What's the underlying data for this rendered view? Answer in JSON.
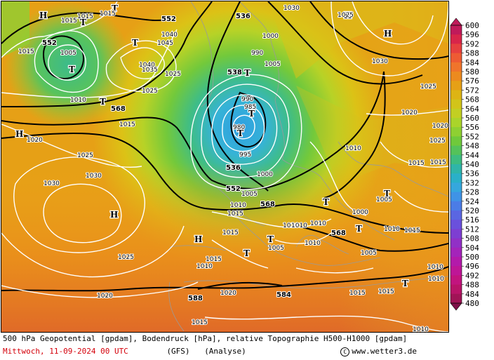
{
  "caption": {
    "line1": "500 hPa Geopotential [gpdam], Bodendruck [hPa], relative Topographie H500-H1000 [gpdam]",
    "date": "Mittwoch, 11-09-2024  00 UTC",
    "model": "(GFS)",
    "mode": "(Analyse)",
    "credit": "www.wetter3.de",
    "copyright_symbol": "C"
  },
  "legend": {
    "labels": [
      "600",
      "596",
      "592",
      "588",
      "584",
      "580",
      "576",
      "572",
      "568",
      "564",
      "560",
      "556",
      "552",
      "548",
      "544",
      "540",
      "536",
      "532",
      "528",
      "524",
      "520",
      "516",
      "512",
      "508",
      "504",
      "500",
      "496",
      "492",
      "488",
      "484",
      "480"
    ],
    "colors": [
      "#c01a5a",
      "#d8254a",
      "#e6403f",
      "#ee5b33",
      "#f0742b",
      "#ec8a1f",
      "#e6a016",
      "#ddb414",
      "#d2c419",
      "#c2cf22",
      "#aad42a",
      "#8ed032",
      "#6fc93b",
      "#54c25a",
      "#3dbc80",
      "#2fb5a8",
      "#2ab0c8",
      "#35a7dd",
      "#3f93e6",
      "#4b7ce6",
      "#5a66e2",
      "#6a50dc",
      "#7d3ed2",
      "#9130c6",
      "#a424ba",
      "#b31aaa",
      "#be1696",
      "#c2147e",
      "#b81468",
      "#a01456",
      "#7e1048"
    ]
  },
  "map": {
    "pressure_systems": [
      {
        "type": "H",
        "name": "high-azores"
      },
      {
        "type": "H",
        "name": "high-greenland-nw"
      },
      {
        "type": "H",
        "name": "high-russia-ne"
      },
      {
        "type": "H",
        "name": "high-russia-north"
      },
      {
        "type": "H",
        "name": "high-iberia"
      },
      {
        "type": "H",
        "name": "high-atlantic-west"
      },
      {
        "type": "T",
        "name": "low-iceland"
      },
      {
        "type": "T",
        "name": "low-greenland"
      },
      {
        "type": "T",
        "name": "low-norway"
      },
      {
        "type": "T",
        "name": "low-north-sea"
      },
      {
        "type": "T",
        "name": "low-scandinavia"
      },
      {
        "type": "T",
        "name": "low-atlantic-northwest"
      },
      {
        "type": "T",
        "name": "low-baltic"
      },
      {
        "type": "T",
        "name": "low-balkan"
      },
      {
        "type": "T",
        "name": "low-mediterranean"
      },
      {
        "type": "T",
        "name": "low-turkey"
      },
      {
        "type": "T",
        "name": "low-middle-east"
      },
      {
        "type": "T",
        "name": "low-north-africa"
      },
      {
        "type": "T",
        "name": "low-sahara"
      },
      {
        "type": "T",
        "name": "low-russia-east"
      }
    ],
    "geopotential_labels": [
      "552",
      "552",
      "536",
      "538",
      "536",
      "552",
      "568",
      "568",
      "588",
      "584",
      "584",
      "568",
      "552",
      "536"
    ],
    "pressure_labels": [
      "1015",
      "1015",
      "1015",
      "1005",
      "1015",
      "1040",
      "1045",
      "1040",
      "1035",
      "1030",
      "1025",
      "1025",
      "1010",
      "1015",
      "990",
      "985",
      "980",
      "995",
      "1000",
      "1005",
      "1010",
      "1015",
      "1020",
      "1025",
      "1030",
      "1030",
      "1025",
      "1020",
      "1015",
      "1010",
      "1005",
      "1000",
      "1010",
      "1015",
      "1020",
      "1025",
      "1030",
      "1025",
      "1020",
      "1015",
      "1010",
      "1005",
      "1010",
      "1015",
      "1025",
      "1030",
      "1020",
      "1015",
      "1010",
      "1010",
      "1015",
      "1010",
      "1015",
      "1010",
      "1005",
      "1000",
      "990",
      "1005",
      "1010",
      "1015",
      "1020"
    ]
  }
}
